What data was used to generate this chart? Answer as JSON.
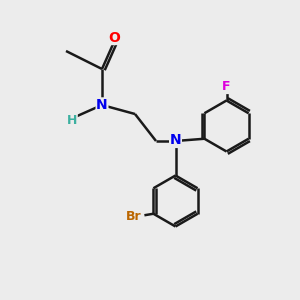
{
  "background_color": "#ececec",
  "bond_color": "#1a1a1a",
  "figsize": [
    3.0,
    3.0
  ],
  "dpi": 100,
  "xlim": [
    0,
    10
  ],
  "ylim": [
    0,
    10
  ],
  "colors": {
    "O": "#ff0000",
    "N": "#0000ee",
    "H": "#3cb0a0",
    "F": "#dd00dd",
    "Br": "#bb6600"
  }
}
